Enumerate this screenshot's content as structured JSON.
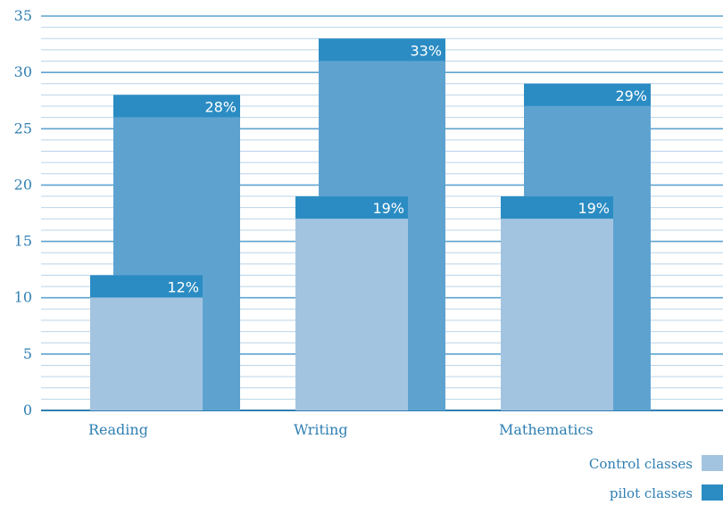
{
  "chart_data": {
    "type": "bar",
    "categories": [
      "Reading",
      "Writing",
      "Mathematics"
    ],
    "series": [
      {
        "name": "pilot classes",
        "values": [
          28,
          33,
          29
        ],
        "labels": [
          "28%",
          "33%",
          "29%"
        ]
      },
      {
        "name": "Control classes",
        "values": [
          12,
          19,
          19
        ],
        "labels": [
          "12%",
          "19%",
          "19%"
        ]
      }
    ],
    "ylim": [
      0,
      35
    ],
    "yticks": [
      0,
      5,
      10,
      15,
      20,
      25,
      30,
      35
    ],
    "minor_gridlines_per_major": 5,
    "grid": true,
    "legend_position": "bottom-right",
    "colors": {
      "pilot_body": "#5ea3d0",
      "pilot_cap": "#2b8cc3",
      "control_body": "#a3c4e0",
      "control_cap": "#2b8cc3",
      "major_grid": "#5ea3d0",
      "minor_grid": "#b9d4ea",
      "axis": "#2f7fb3",
      "text": "#2f7fb3",
      "legend_control": "#a3c4e0",
      "legend_pilot": "#2b8cc3"
    }
  }
}
